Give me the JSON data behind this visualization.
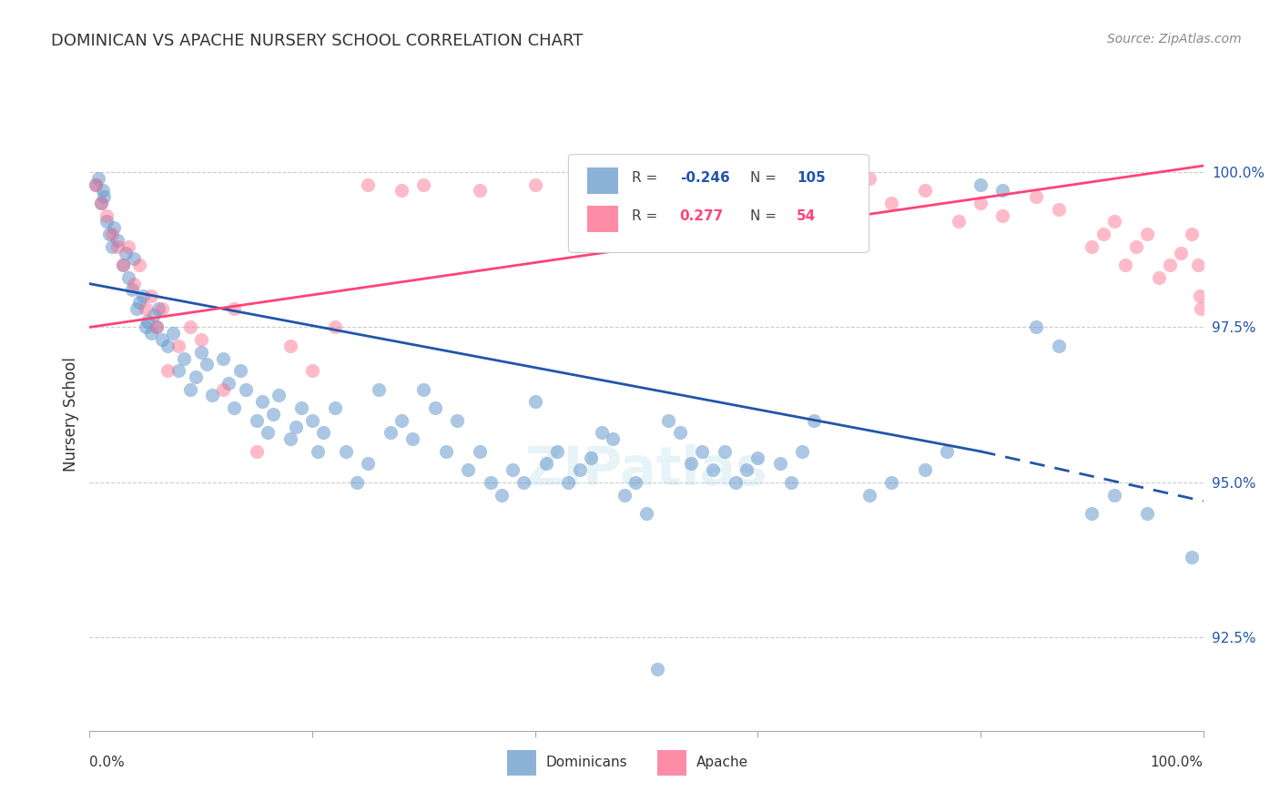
{
  "title": "DOMINICAN VS APACHE NURSERY SCHOOL CORRELATION CHART",
  "source": "Source: ZipAtlas.com",
  "ylabel": "Nursery School",
  "yticks": [
    92.5,
    95.0,
    97.5,
    100.0
  ],
  "ytick_labels": [
    "92.5%",
    "95.0%",
    "97.5%",
    "100.0%"
  ],
  "xlim": [
    0.0,
    100.0
  ],
  "ylim": [
    91.0,
    101.2
  ],
  "legend_blue_r": "-0.246",
  "legend_blue_n": "105",
  "legend_pink_r": "0.277",
  "legend_pink_n": "54",
  "blue_color": "#6699CC",
  "pink_color": "#FF6688",
  "blue_line_color": "#2255AA",
  "pink_line_color": "#FF4477",
  "watermark": "ZIPatlas",
  "blue_line_solid": [
    [
      0,
      98.2
    ],
    [
      80,
      95.5
    ]
  ],
  "blue_line_dash": [
    [
      80,
      95.5
    ],
    [
      100,
      94.7
    ]
  ],
  "pink_line": [
    [
      0,
      97.5
    ],
    [
      100,
      100.1
    ]
  ],
  "blue_scatter": [
    [
      0.5,
      99.8
    ],
    [
      0.8,
      99.9
    ],
    [
      1.0,
      99.5
    ],
    [
      1.2,
      99.7
    ],
    [
      1.3,
      99.6
    ],
    [
      1.5,
      99.2
    ],
    [
      1.8,
      99.0
    ],
    [
      2.0,
      98.8
    ],
    [
      2.2,
      99.1
    ],
    [
      2.5,
      98.9
    ],
    [
      3.0,
      98.5
    ],
    [
      3.2,
      98.7
    ],
    [
      3.5,
      98.3
    ],
    [
      3.8,
      98.1
    ],
    [
      4.0,
      98.6
    ],
    [
      4.2,
      97.8
    ],
    [
      4.5,
      97.9
    ],
    [
      4.8,
      98.0
    ],
    [
      5.0,
      97.5
    ],
    [
      5.2,
      97.6
    ],
    [
      5.5,
      97.4
    ],
    [
      5.8,
      97.7
    ],
    [
      6.0,
      97.5
    ],
    [
      6.2,
      97.8
    ],
    [
      6.5,
      97.3
    ],
    [
      7.0,
      97.2
    ],
    [
      7.5,
      97.4
    ],
    [
      8.0,
      96.8
    ],
    [
      8.5,
      97.0
    ],
    [
      9.0,
      96.5
    ],
    [
      9.5,
      96.7
    ],
    [
      10.0,
      97.1
    ],
    [
      10.5,
      96.9
    ],
    [
      11.0,
      96.4
    ],
    [
      12.0,
      97.0
    ],
    [
      12.5,
      96.6
    ],
    [
      13.0,
      96.2
    ],
    [
      13.5,
      96.8
    ],
    [
      14.0,
      96.5
    ],
    [
      15.0,
      96.0
    ],
    [
      15.5,
      96.3
    ],
    [
      16.0,
      95.8
    ],
    [
      16.5,
      96.1
    ],
    [
      17.0,
      96.4
    ],
    [
      18.0,
      95.7
    ],
    [
      18.5,
      95.9
    ],
    [
      19.0,
      96.2
    ],
    [
      20.0,
      96.0
    ],
    [
      20.5,
      95.5
    ],
    [
      21.0,
      95.8
    ],
    [
      22.0,
      96.2
    ],
    [
      23.0,
      95.5
    ],
    [
      24.0,
      95.0
    ],
    [
      25.0,
      95.3
    ],
    [
      26.0,
      96.5
    ],
    [
      27.0,
      95.8
    ],
    [
      28.0,
      96.0
    ],
    [
      29.0,
      95.7
    ],
    [
      30.0,
      96.5
    ],
    [
      31.0,
      96.2
    ],
    [
      32.0,
      95.5
    ],
    [
      33.0,
      96.0
    ],
    [
      34.0,
      95.2
    ],
    [
      35.0,
      95.5
    ],
    [
      36.0,
      95.0
    ],
    [
      37.0,
      94.8
    ],
    [
      38.0,
      95.2
    ],
    [
      39.0,
      95.0
    ],
    [
      40.0,
      96.3
    ],
    [
      41.0,
      95.3
    ],
    [
      42.0,
      95.5
    ],
    [
      43.0,
      95.0
    ],
    [
      44.0,
      95.2
    ],
    [
      45.0,
      95.4
    ],
    [
      46.0,
      95.8
    ],
    [
      47.0,
      95.7
    ],
    [
      48.0,
      94.8
    ],
    [
      49.0,
      95.0
    ],
    [
      50.0,
      94.5
    ],
    [
      51.0,
      92.0
    ],
    [
      52.0,
      96.0
    ],
    [
      53.0,
      95.8
    ],
    [
      54.0,
      95.3
    ],
    [
      55.0,
      95.5
    ],
    [
      56.0,
      95.2
    ],
    [
      57.0,
      95.5
    ],
    [
      58.0,
      95.0
    ],
    [
      59.0,
      95.2
    ],
    [
      60.0,
      95.4
    ],
    [
      62.0,
      95.3
    ],
    [
      63.0,
      95.0
    ],
    [
      64.0,
      95.5
    ],
    [
      65.0,
      96.0
    ],
    [
      70.0,
      94.8
    ],
    [
      72.0,
      95.0
    ],
    [
      75.0,
      95.2
    ],
    [
      77.0,
      95.5
    ],
    [
      80.0,
      99.8
    ],
    [
      82.0,
      99.7
    ],
    [
      85.0,
      97.5
    ],
    [
      87.0,
      97.2
    ],
    [
      90.0,
      94.5
    ],
    [
      92.0,
      94.8
    ],
    [
      95.0,
      94.5
    ],
    [
      99.0,
      93.8
    ]
  ],
  "pink_scatter": [
    [
      0.5,
      99.8
    ],
    [
      1.0,
      99.5
    ],
    [
      1.5,
      99.3
    ],
    [
      2.0,
      99.0
    ],
    [
      2.5,
      98.8
    ],
    [
      3.0,
      98.5
    ],
    [
      3.5,
      98.8
    ],
    [
      4.0,
      98.2
    ],
    [
      4.5,
      98.5
    ],
    [
      5.0,
      97.8
    ],
    [
      5.5,
      98.0
    ],
    [
      6.0,
      97.5
    ],
    [
      6.5,
      97.8
    ],
    [
      7.0,
      96.8
    ],
    [
      8.0,
      97.2
    ],
    [
      9.0,
      97.5
    ],
    [
      10.0,
      97.3
    ],
    [
      12.0,
      96.5
    ],
    [
      13.0,
      97.8
    ],
    [
      15.0,
      95.5
    ],
    [
      18.0,
      97.2
    ],
    [
      20.0,
      96.8
    ],
    [
      22.0,
      97.5
    ],
    [
      25.0,
      99.8
    ],
    [
      28.0,
      99.7
    ],
    [
      30.0,
      99.8
    ],
    [
      35.0,
      99.7
    ],
    [
      40.0,
      99.8
    ],
    [
      45.0,
      99.7
    ],
    [
      50.0,
      99.8
    ],
    [
      55.0,
      99.7
    ],
    [
      60.0,
      99.6
    ],
    [
      65.0,
      99.8
    ],
    [
      70.0,
      99.9
    ],
    [
      72.0,
      99.5
    ],
    [
      75.0,
      99.7
    ],
    [
      78.0,
      99.2
    ],
    [
      80.0,
      99.5
    ],
    [
      82.0,
      99.3
    ],
    [
      85.0,
      99.6
    ],
    [
      87.0,
      99.4
    ],
    [
      90.0,
      98.8
    ],
    [
      91.0,
      99.0
    ],
    [
      92.0,
      99.2
    ],
    [
      93.0,
      98.5
    ],
    [
      94.0,
      98.8
    ],
    [
      95.0,
      99.0
    ],
    [
      96.0,
      98.3
    ],
    [
      97.0,
      98.5
    ],
    [
      98.0,
      98.7
    ],
    [
      99.0,
      99.0
    ],
    [
      99.5,
      98.5
    ],
    [
      99.7,
      98.0
    ],
    [
      99.8,
      97.8
    ]
  ]
}
